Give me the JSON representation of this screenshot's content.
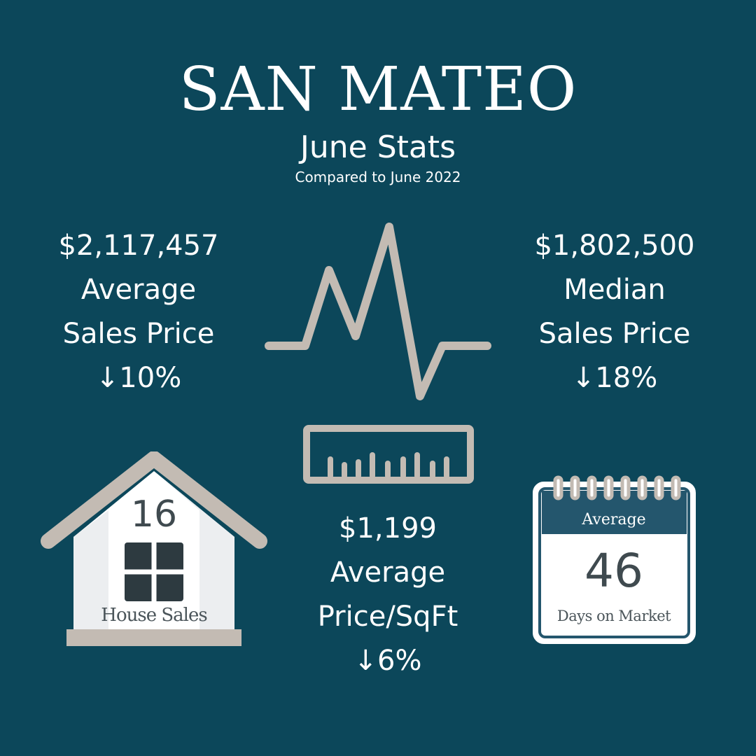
{
  "header": {
    "title": "SAN MATEO",
    "subtitle": "June Stats",
    "comparison": "Compared to June 2022"
  },
  "stats": {
    "average_sales_price": {
      "value": "$2,117,457",
      "label_line1": "Average",
      "label_line2": "Sales Price",
      "change": "10%",
      "arrow": "↓"
    },
    "median_sales_price": {
      "value": "$1,802,500",
      "label_line1": "Median",
      "label_line2": "Sales Price",
      "change": "18%",
      "arrow": "↓"
    },
    "average_price_sqft": {
      "value": "$1,199",
      "label_line1": "Average",
      "label_line2": "Price/SqFt",
      "change": "6%",
      "arrow": "↓"
    }
  },
  "house_sales": {
    "count": "16",
    "label": "House Sales"
  },
  "days_on_market": {
    "header": "Average",
    "count": "46",
    "label": "Days on Market"
  },
  "icons": [
    "heartbeat-line-icon",
    "ruler-icon",
    "house-icon",
    "calendar-icon"
  ],
  "colors": {
    "background": "#0c475a",
    "icon_gray": "#c3bbb3",
    "calendar_header": "#24566d",
    "text_dark": "#3f4a4f"
  }
}
